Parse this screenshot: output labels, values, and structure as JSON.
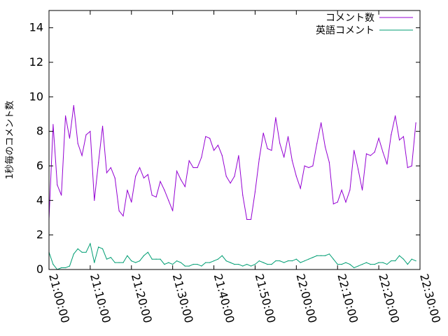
{
  "chart_data": {
    "type": "line",
    "title": "",
    "xlabel": "",
    "ylabel": "1秒毎のコメント数",
    "x_tick_labels": [
      "21:00:00",
      "21:10:00",
      "21:20:00",
      "21:30:00",
      "21:40:00",
      "21:50:00",
      "22:00:00",
      "22:10:00",
      "22:20:00",
      "22:30:00"
    ],
    "x_range_minutes": [
      0,
      90
    ],
    "ylim": [
      0,
      15
    ],
    "y_ticks": [
      0,
      2,
      4,
      6,
      8,
      10,
      12,
      14
    ],
    "grid": false,
    "legend_position": "top-right",
    "series": [
      {
        "name": "コメント数",
        "color": "#9400d3",
        "x_minutes": [
          0,
          1,
          2,
          3,
          4,
          5,
          6,
          7,
          8,
          9,
          10,
          11,
          12,
          13,
          14,
          15,
          16,
          17,
          18,
          19,
          20,
          21,
          22,
          23,
          24,
          25,
          26,
          27,
          28,
          29,
          30,
          31,
          32,
          33,
          34,
          35,
          36,
          37,
          38,
          39,
          40,
          41,
          42,
          43,
          44,
          45,
          46,
          47,
          48,
          49,
          50,
          51,
          52,
          53,
          54,
          55,
          56,
          57,
          58,
          59,
          60,
          61,
          62,
          63,
          64,
          65,
          66,
          67,
          68,
          69,
          70,
          71,
          72,
          73,
          74,
          75,
          76,
          77,
          78,
          79,
          80,
          81,
          82,
          83,
          84,
          85,
          86,
          87,
          88,
          89
        ],
        "values": [
          2.9,
          8.4,
          4.9,
          4.3,
          8.9,
          7.6,
          9.5,
          7.3,
          6.6,
          7.8,
          8.0,
          4.0,
          6.2,
          8.3,
          5.6,
          5.9,
          5.3,
          3.4,
          3.1,
          4.6,
          3.9,
          5.4,
          5.9,
          5.3,
          5.5,
          4.3,
          4.2,
          5.1,
          4.6,
          4.0,
          3.4,
          5.7,
          5.2,
          4.8,
          6.3,
          5.9,
          5.9,
          6.5,
          7.7,
          7.6,
          6.9,
          7.2,
          6.6,
          5.4,
          5.0,
          5.4,
          6.6,
          4.3,
          2.9,
          2.9,
          4.5,
          6.4,
          7.9,
          7.0,
          6.9,
          8.8,
          7.3,
          6.5,
          7.7,
          6.3,
          5.4,
          4.7,
          6.0,
          5.9,
          6.0,
          7.3,
          8.5,
          7.1,
          6.2,
          3.8,
          3.9,
          4.6,
          3.9,
          4.6,
          6.9,
          5.8,
          4.6,
          6.7,
          6.6,
          6.8,
          7.6,
          6.8,
          6.1,
          7.8,
          8.9,
          7.5,
          7.7,
          5.9,
          6.0,
          8.5
        ]
      },
      {
        "name": "英語コメント",
        "color": "#009e73",
        "x_minutes": [
          0,
          1,
          2,
          3,
          4,
          5,
          6,
          7,
          8,
          9,
          10,
          11,
          12,
          13,
          14,
          15,
          16,
          17,
          18,
          19,
          20,
          21,
          22,
          23,
          24,
          25,
          26,
          27,
          28,
          29,
          30,
          31,
          32,
          33,
          34,
          35,
          36,
          37,
          38,
          39,
          40,
          41,
          42,
          43,
          44,
          45,
          46,
          47,
          48,
          49,
          50,
          51,
          52,
          53,
          54,
          55,
          56,
          57,
          58,
          59,
          60,
          61,
          62,
          63,
          64,
          65,
          66,
          67,
          68,
          69,
          70,
          71,
          72,
          73,
          74,
          75,
          76,
          77,
          78,
          79,
          80,
          81,
          82,
          83,
          84,
          85,
          86,
          87,
          88,
          89
        ],
        "values": [
          1.0,
          0.3,
          0.0,
          0.1,
          0.1,
          0.2,
          0.9,
          1.2,
          1.0,
          1.0,
          1.5,
          0.4,
          1.3,
          1.2,
          0.6,
          0.7,
          0.4,
          0.4,
          0.4,
          0.8,
          0.5,
          0.4,
          0.5,
          0.8,
          1.0,
          0.6,
          0.6,
          0.6,
          0.3,
          0.4,
          0.3,
          0.5,
          0.4,
          0.2,
          0.2,
          0.3,
          0.3,
          0.2,
          0.4,
          0.4,
          0.5,
          0.6,
          0.8,
          0.5,
          0.4,
          0.3,
          0.3,
          0.2,
          0.3,
          0.2,
          0.3,
          0.5,
          0.4,
          0.3,
          0.3,
          0.5,
          0.5,
          0.4,
          0.5,
          0.5,
          0.6,
          0.4,
          0.5,
          0.6,
          0.7,
          0.8,
          0.8,
          0.8,
          0.9,
          0.6,
          0.3,
          0.3,
          0.4,
          0.3,
          0.1,
          0.2,
          0.3,
          0.4,
          0.3,
          0.3,
          0.4,
          0.4,
          0.3,
          0.5,
          0.5,
          0.8,
          0.6,
          0.3,
          0.6,
          0.5
        ]
      }
    ]
  }
}
